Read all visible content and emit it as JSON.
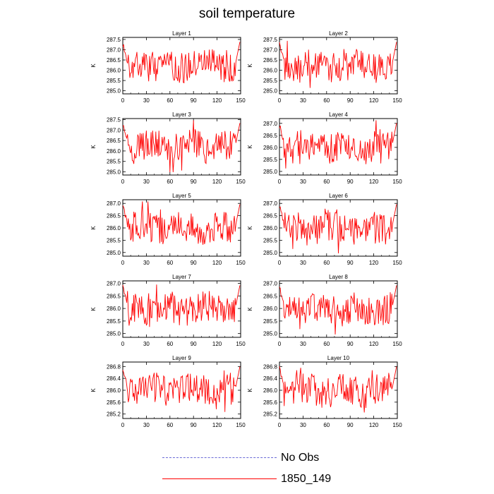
{
  "title": "soil temperature",
  "legend": [
    {
      "label": "No Obs",
      "color": "#6b6bd6",
      "style": "dashed"
    },
    {
      "label": "1850_149",
      "color": "#ff0000",
      "style": "solid"
    }
  ],
  "chart_data": [
    {
      "type": "line",
      "title": "Layer 1",
      "ylabel": "K",
      "xlim": [
        0,
        150
      ],
      "ylim": [
        284.85,
        287.6
      ],
      "xticks": [
        0,
        30,
        60,
        90,
        120,
        150
      ],
      "yticks": [
        "285.0",
        "285.5",
        "286.0",
        "286.5",
        "287.0",
        "287.5"
      ],
      "series": [
        {
          "name": "1850_149",
          "color": "#ff0000",
          "seed": 1
        }
      ]
    },
    {
      "type": "line",
      "title": "Layer 2",
      "ylabel": "K",
      "xlim": [
        0,
        150
      ],
      "ylim": [
        284.85,
        287.6
      ],
      "xticks": [
        0,
        30,
        60,
        90,
        120,
        150
      ],
      "yticks": [
        "285.0",
        "285.5",
        "286.0",
        "286.5",
        "287.0",
        "287.5"
      ],
      "series": [
        {
          "name": "1850_149",
          "color": "#ff0000",
          "seed": 2
        }
      ]
    },
    {
      "type": "line",
      "title": "Layer 3",
      "ylabel": "K",
      "xlim": [
        0,
        150
      ],
      "ylim": [
        284.85,
        287.55
      ],
      "xticks": [
        0,
        30,
        60,
        90,
        120,
        150
      ],
      "yticks": [
        "285.0",
        "285.5",
        "286.0",
        "286.5",
        "287.0",
        "287.5"
      ],
      "series": [
        {
          "name": "1850_149",
          "color": "#ff0000",
          "seed": 3
        }
      ]
    },
    {
      "type": "line",
      "title": "Layer 4",
      "ylabel": "K",
      "xlim": [
        0,
        150
      ],
      "ylim": [
        284.85,
        287.2
      ],
      "xticks": [
        0,
        30,
        60,
        90,
        120,
        150
      ],
      "yticks": [
        "285.0",
        "285.5",
        "286.0",
        "286.5",
        "287.0"
      ],
      "series": [
        {
          "name": "1850_149",
          "color": "#ff0000",
          "seed": 4
        }
      ]
    },
    {
      "type": "line",
      "title": "Layer 5",
      "ylabel": "K",
      "xlim": [
        0,
        150
      ],
      "ylim": [
        284.85,
        287.15
      ],
      "xticks": [
        0,
        30,
        60,
        90,
        120,
        150
      ],
      "yticks": [
        "285.0",
        "285.5",
        "286.0",
        "286.5",
        "287.0"
      ],
      "series": [
        {
          "name": "1850_149",
          "color": "#ff0000",
          "seed": 5
        }
      ]
    },
    {
      "type": "line",
      "title": "Layer 6",
      "ylabel": "K",
      "xlim": [
        0,
        150
      ],
      "ylim": [
        284.85,
        287.15
      ],
      "xticks": [
        0,
        30,
        60,
        90,
        120,
        150
      ],
      "yticks": [
        "285.0",
        "285.5",
        "286.0",
        "286.5",
        "287.0"
      ],
      "series": [
        {
          "name": "1850_149",
          "color": "#ff0000",
          "seed": 6
        }
      ]
    },
    {
      "type": "line",
      "title": "Layer 7",
      "ylabel": "K",
      "xlim": [
        0,
        150
      ],
      "ylim": [
        284.85,
        287.1
      ],
      "xticks": [
        0,
        30,
        60,
        90,
        120,
        150
      ],
      "yticks": [
        "285.0",
        "285.5",
        "286.0",
        "286.5",
        "287.0"
      ],
      "series": [
        {
          "name": "1850_149",
          "color": "#ff0000",
          "seed": 7
        }
      ]
    },
    {
      "type": "line",
      "title": "Layer 8",
      "ylabel": "K",
      "xlim": [
        0,
        150
      ],
      "ylim": [
        284.85,
        287.1
      ],
      "xticks": [
        0,
        30,
        60,
        90,
        120,
        150
      ],
      "yticks": [
        "285.0",
        "285.5",
        "286.0",
        "286.5",
        "287.0"
      ],
      "series": [
        {
          "name": "1850_149",
          "color": "#ff0000",
          "seed": 8
        }
      ]
    },
    {
      "type": "line",
      "title": "Layer 9",
      "ylabel": "K",
      "xlim": [
        0,
        150
      ],
      "ylim": [
        285.05,
        286.95
      ],
      "xticks": [
        0,
        30,
        60,
        90,
        120,
        150
      ],
      "yticks": [
        "285.2",
        "285.6",
        "286.0",
        "286.4",
        "286.8"
      ],
      "series": [
        {
          "name": "1850_149",
          "color": "#ff0000",
          "seed": 9
        }
      ]
    },
    {
      "type": "line",
      "title": "Layer 10",
      "ylabel": "K",
      "xlim": [
        0,
        150
      ],
      "ylim": [
        285.05,
        286.95
      ],
      "xticks": [
        0,
        30,
        60,
        90,
        120,
        150
      ],
      "yticks": [
        "285.2",
        "285.6",
        "286.0",
        "286.4",
        "286.8"
      ],
      "series": [
        {
          "name": "1850_149",
          "color": "#ff0000",
          "seed": 10
        }
      ]
    }
  ]
}
